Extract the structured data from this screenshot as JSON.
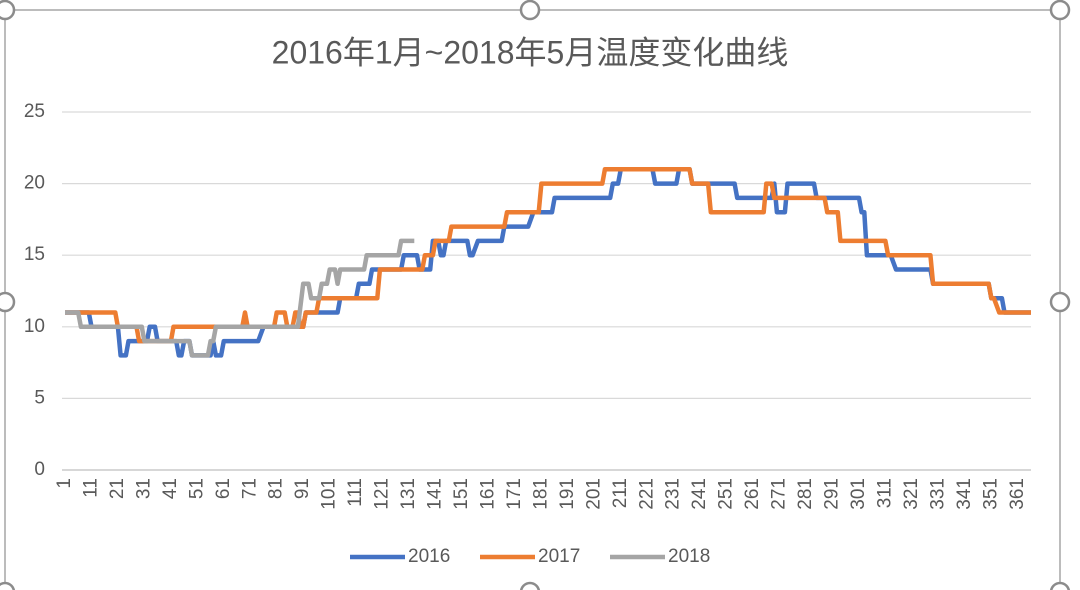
{
  "chart_data": {
    "type": "line",
    "title": "2016年1月~2018年5月温度变化曲线",
    "xlim": [
      1,
      366
    ],
    "xticks": [
      1,
      11,
      21,
      31,
      41,
      51,
      61,
      71,
      81,
      91,
      101,
      111,
      121,
      131,
      141,
      151,
      161,
      171,
      181,
      191,
      201,
      211,
      221,
      231,
      241,
      251,
      261,
      271,
      281,
      291,
      301,
      311,
      321,
      331,
      341,
      351,
      361
    ],
    "ylim": [
      0,
      25
    ],
    "yticks": [
      0,
      5,
      10,
      15,
      20,
      25
    ],
    "grid": true,
    "legend": "bottom",
    "series": [
      {
        "name": "2016",
        "color": "#4472c4",
        "x": [
          1,
          10,
          11,
          21,
          22,
          24,
          25,
          32,
          33,
          35,
          36,
          43,
          44,
          45,
          46,
          48,
          49,
          56,
          57,
          58,
          60,
          61,
          74,
          76,
          91,
          92,
          104,
          105,
          111,
          112,
          116,
          117,
          128,
          129,
          134,
          135,
          139,
          140,
          142,
          143,
          144,
          145,
          153,
          154,
          155,
          157,
          166,
          167,
          176,
          178,
          185,
          186,
          207,
          208,
          210,
          211,
          223,
          224,
          232,
          233,
          237,
          238,
          254,
          255,
          268,
          269,
          270,
          273,
          274,
          284,
          285,
          301,
          302,
          303,
          304,
          313,
          315,
          328,
          329,
          350,
          351,
          355,
          356,
          366
        ],
        "values": [
          11,
          11,
          10,
          10,
          8,
          8,
          9,
          9,
          10,
          10,
          9,
          9,
          8,
          8,
          9,
          9,
          8,
          8,
          9,
          8,
          8,
          9,
          9,
          10,
          10,
          11,
          11,
          12,
          12,
          13,
          13,
          14,
          14,
          15,
          15,
          14,
          14,
          16,
          16,
          15,
          15,
          16,
          16,
          15,
          15,
          16,
          16,
          17,
          17,
          18,
          18,
          19,
          19,
          20,
          20,
          21,
          21,
          20,
          20,
          21,
          21,
          20,
          20,
          19,
          19,
          20,
          18,
          18,
          20,
          20,
          19,
          19,
          18,
          18,
          15,
          15,
          14,
          14,
          13,
          13,
          12,
          12,
          11,
          11
        ]
      },
      {
        "name": "2017",
        "color": "#ed7d31",
        "x": [
          1,
          20,
          21,
          28,
          29,
          41,
          42,
          68,
          69,
          70,
          80,
          81,
          84,
          85,
          87,
          88,
          89,
          90,
          91,
          92,
          96,
          97,
          119,
          120,
          136,
          137,
          140,
          141,
          146,
          147,
          167,
          168,
          180,
          181,
          204,
          205,
          237,
          238,
          244,
          245,
          265,
          266,
          268,
          269,
          288,
          289,
          293,
          294,
          311,
          312,
          328,
          329,
          350,
          351,
          352,
          354,
          366
        ],
        "values": [
          11,
          11,
          10,
          10,
          9,
          9,
          10,
          10,
          11,
          10,
          10,
          11,
          11,
          10,
          10,
          11,
          11,
          10,
          10,
          11,
          11,
          12,
          12,
          14,
          14,
          15,
          15,
          16,
          16,
          17,
          17,
          18,
          18,
          20,
          20,
          21,
          21,
          20,
          20,
          18,
          18,
          20,
          20,
          19,
          19,
          18,
          18,
          16,
          16,
          15,
          15,
          13,
          13,
          12,
          12,
          11,
          11
        ]
      },
      {
        "name": "2018",
        "color": "#a5a5a5",
        "x": [
          1,
          6,
          7,
          30,
          31,
          48,
          49,
          55,
          56,
          57,
          58,
          89,
          91,
          93,
          94,
          97,
          98,
          100,
          101,
          103,
          104,
          105,
          114,
          115,
          127,
          128,
          133
        ],
        "values": [
          11,
          11,
          10,
          10,
          9,
          9,
          8,
          8,
          9,
          9,
          10,
          10,
          13,
          13,
          12,
          12,
          13,
          13,
          14,
          14,
          13,
          14,
          14,
          15,
          15,
          16,
          16
        ]
      }
    ]
  }
}
